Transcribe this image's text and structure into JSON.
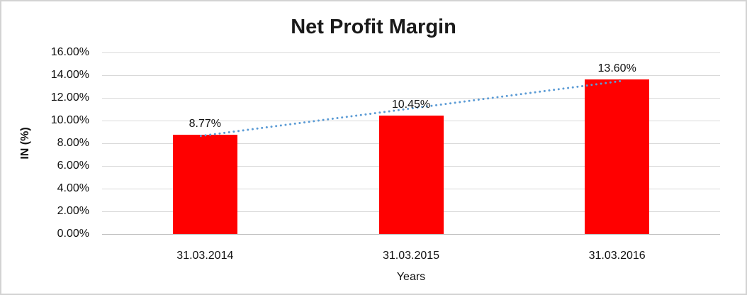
{
  "chart": {
    "title": "Net Profit Margin",
    "y_axis_title": "IN (%)",
    "x_axis_title": "Years",
    "colors": {
      "bar": "#ff0000",
      "trendline": "#5b9bd5",
      "gridline": "#d9d9d9",
      "axis_line": "#bfbfbf",
      "text": "#111111",
      "border": "#d3d3d3"
    }
  },
  "chart_data": {
    "type": "bar",
    "title": "Net Profit Margin",
    "xlabel": "Years",
    "ylabel": "IN (%)",
    "categories": [
      "31.03.2014",
      "31.03.2015",
      "31.03.2016"
    ],
    "values": [
      8.77,
      10.45,
      13.6
    ],
    "data_labels": [
      "8.77%",
      "10.45%",
      "13.60%"
    ],
    "ylim": [
      0,
      16
    ],
    "ytick_step": 2,
    "ytick_labels": [
      "0.00%",
      "2.00%",
      "4.00%",
      "6.00%",
      "8.00%",
      "10.00%",
      "12.00%",
      "14.00%",
      "16.00%"
    ],
    "grid": true,
    "legend_position": "none",
    "bar_color": "#ff0000",
    "trendline": {
      "type": "linear",
      "style": "dotted",
      "color": "#5b9bd5"
    }
  }
}
